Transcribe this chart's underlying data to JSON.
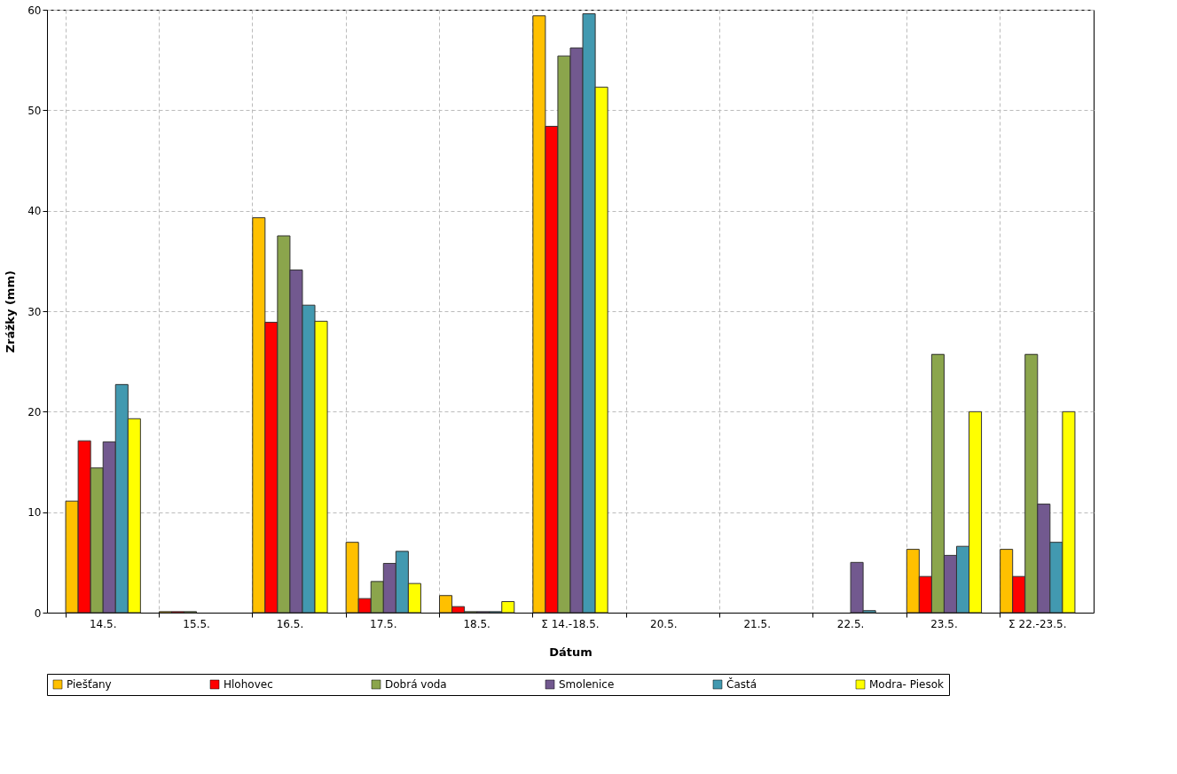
{
  "chart_data": {
    "type": "bar",
    "xlabel": "Dátum",
    "ylabel": "Zrážky (mm)",
    "categories": [
      "14.5.",
      "15.5.",
      "16.5.",
      "17.5.",
      "18.5.",
      "Σ 14.-18.5.",
      "20.5.",
      "21.5.",
      "22.5.",
      "23.5.",
      "Σ 22.-23.5."
    ],
    "series": [
      {
        "name": "Piešťany",
        "color": "#ffc000",
        "values": [
          11.1,
          0.1,
          39.3,
          7.0,
          1.7,
          59.4,
          0,
          0,
          0,
          6.3,
          6.3
        ]
      },
      {
        "name": "Hlohovec",
        "color": "#ff0000",
        "values": [
          17.1,
          0.1,
          28.9,
          1.4,
          0.6,
          48.4,
          0,
          0,
          0,
          3.6,
          3.6
        ]
      },
      {
        "name": "Dobrá voda",
        "color": "#8ba54c",
        "values": [
          14.4,
          0.1,
          37.5,
          3.1,
          0.1,
          55.4,
          0,
          0,
          0,
          25.7,
          25.7
        ]
      },
      {
        "name": "Smolenice",
        "color": "#72598f",
        "values": [
          17.0,
          0,
          34.1,
          4.9,
          0.1,
          56.2,
          0,
          0,
          5.0,
          5.7,
          10.8
        ]
      },
      {
        "name": "Častá",
        "color": "#4299b0",
        "values": [
          22.7,
          0,
          30.6,
          6.1,
          0.1,
          59.6,
          0,
          0,
          0.2,
          6.6,
          7.0
        ]
      },
      {
        "name": "Modra- Piesok",
        "color": "#ffff00",
        "values": [
          19.3,
          0,
          29.0,
          2.9,
          1.1,
          52.3,
          0,
          0,
          0,
          20.0,
          20.0
        ]
      }
    ],
    "ylim": [
      0,
      60
    ],
    "yticks": [
      0,
      10,
      20,
      30,
      40,
      50,
      60
    ],
    "grid": true,
    "legend": "bottom"
  }
}
